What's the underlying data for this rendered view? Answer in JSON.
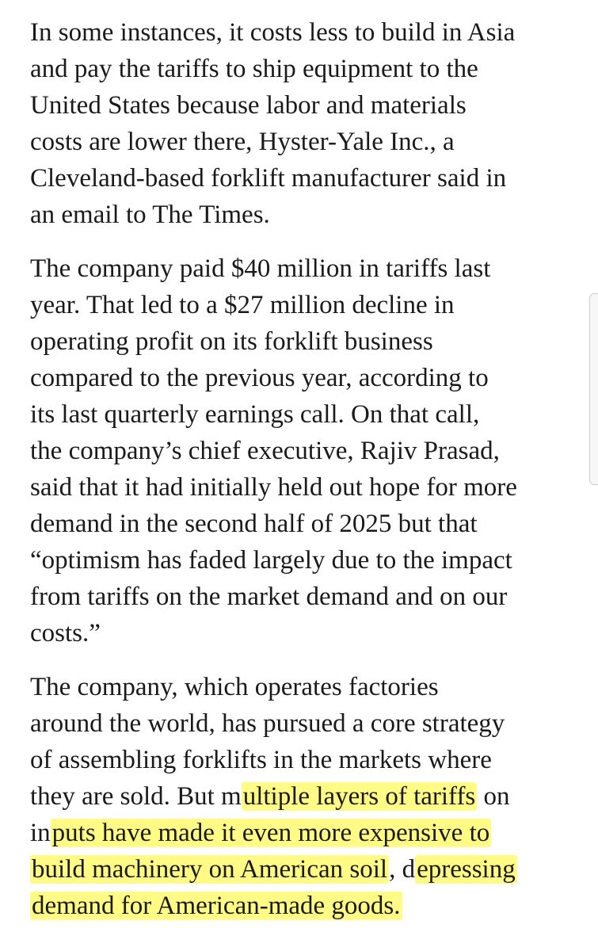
{
  "article": {
    "paragraph_1": {
      "lines": [
        "In some instances, it costs less to build in Asia",
        "and pay the tariffs to ship equipment to the",
        "United States because labor and materials",
        "costs are lower there, Hyster-Yale Inc., a",
        "Cleveland-based forklift manufacturer said in",
        "an email to The Times."
      ]
    },
    "paragraph_2": {
      "lines": [
        "The company paid $40 million in tariffs last",
        "year. That led to a $27 million decline in",
        "operating profit on its forklift business",
        "compared to the previous year, according to",
        "its last quarterly earnings call. On that call,",
        "the company’s chief executive, Rajiv Prasad,",
        "said that it had initially held out hope for more",
        "demand in the second half of 2025 but that",
        "“optimism has faded largely due to the impact",
        "from tariffs on the market demand and on our",
        "costs.”"
      ]
    },
    "paragraph_3": {
      "line_1": "The company, which operates factories",
      "line_2": "around the world, has pursued a core strategy",
      "line_3": "of assembling forklifts in the markets where",
      "line_4": {
        "plain": "they are sold. But m",
        "highlight": "ultiple layers of tariffs",
        "tail": " on"
      },
      "line_5": {
        "plain": "in",
        "highlight": "puts have made it even more expensive to"
      },
      "line_6": {
        "highlight_1": "build machinery on American soil",
        "plain": ", d",
        "highlight_2": "epressing"
      },
      "line_7": {
        "highlight": "demand for American-made goods."
      }
    }
  },
  "colors": {
    "text": "#1a1a1a",
    "highlight": "#fffa6e",
    "background": "#ffffff"
  }
}
